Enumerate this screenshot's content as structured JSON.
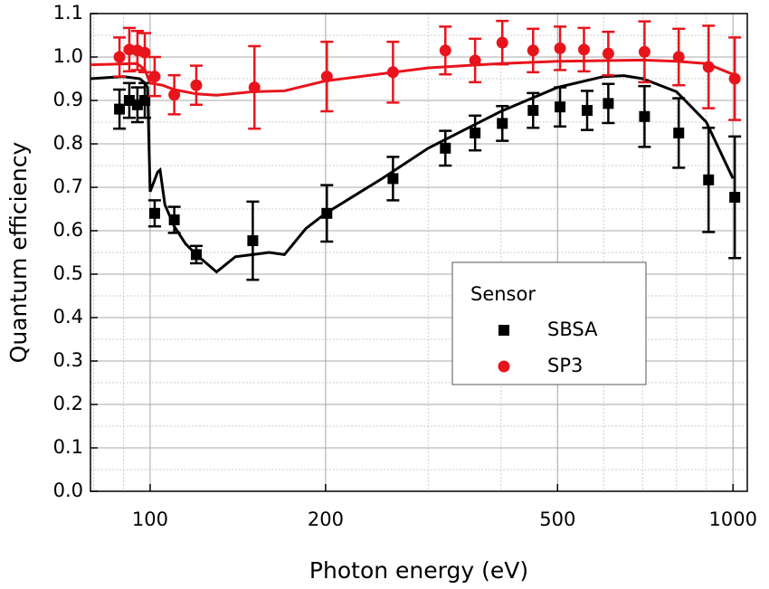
{
  "chart_data": {
    "type": "scatter",
    "x_label": "Photon energy (eV)",
    "y_label": "Quantum efficiency",
    "legend_title": "Sensor",
    "legend": "lower right",
    "log_x": true,
    "grid": true,
    "xlim": [
      79,
      1058
    ],
    "ylim": [
      0,
      1.1
    ],
    "xticks": [
      100,
      200,
      500,
      1000
    ],
    "yticks": [
      {
        "value": 0,
        "label": "0.0"
      },
      0.1,
      0.2,
      0.3,
      0.4,
      0.5,
      0.6,
      0.7,
      0.8,
      0.9,
      {
        "value": 1,
        "label": "1.0"
      },
      1.1
    ],
    "series": [
      {
        "name": "SBSA",
        "color": "#000000",
        "marker": "square",
        "x": [
          88.6,
          92.1,
          95.1,
          97.9,
          101.8,
          110,
          120,
          150,
          201,
          261,
          321,
          361,
          402,
          454,
          505,
          562,
          611,
          705,
          807,
          908,
          1007
        ],
        "values": [
          0.88,
          0.9,
          0.89,
          0.9,
          0.64,
          0.625,
          0.545,
          0.577,
          0.64,
          0.72,
          0.79,
          0.825,
          0.847,
          0.877,
          0.885,
          0.877,
          0.893,
          0.863,
          0.825,
          0.717,
          0.677
        ],
        "errors": [
          0.045,
          0.04,
          0.04,
          0.04,
          0.03,
          0.03,
          0.02,
          0.09,
          0.065,
          0.05,
          0.04,
          0.04,
          0.04,
          0.04,
          0.045,
          0.045,
          0.045,
          0.07,
          0.08,
          0.12,
          0.14
        ],
        "curve": {
          "x": [
            79,
            90,
            96,
            98,
            99,
            100,
            103,
            104,
            106,
            110,
            115,
            120,
            130,
            140,
            150,
            160,
            170,
            185,
            200,
            250,
            300,
            400,
            500,
            600,
            650,
            700,
            800,
            900,
            1000
          ],
          "values": [
            0.95,
            0.955,
            0.95,
            0.94,
            0.93,
            0.69,
            0.735,
            0.74,
            0.66,
            0.61,
            0.57,
            0.545,
            0.505,
            0.54,
            0.545,
            0.55,
            0.545,
            0.605,
            0.64,
            0.72,
            0.79,
            0.875,
            0.93,
            0.955,
            0.957,
            0.95,
            0.92,
            0.85,
            0.72
          ]
        }
      },
      {
        "name": "SP3",
        "color": "#e8141c",
        "marker": "circle",
        "x": [
          88.6,
          92.1,
          95.1,
          97.9,
          101.8,
          110,
          120,
          151,
          201,
          261,
          321,
          361,
          402,
          454,
          505,
          555,
          611,
          705,
          807,
          908,
          1007
        ],
        "values": [
          1.0,
          1.017,
          1.015,
          1.01,
          0.955,
          0.913,
          0.935,
          0.93,
          0.955,
          0.965,
          1.015,
          0.992,
          1.033,
          1.015,
          1.02,
          1.017,
          1.008,
          1.012,
          1.0,
          0.977,
          0.95
        ],
        "errors": [
          0.045,
          0.05,
          0.045,
          0.045,
          0.045,
          0.045,
          0.045,
          0.095,
          0.08,
          0.07,
          0.055,
          0.05,
          0.05,
          0.05,
          0.05,
          0.05,
          0.05,
          0.07,
          0.065,
          0.095,
          0.095
        ],
        "curve": {
          "x": [
            79,
            95,
            98,
            100,
            105,
            110,
            120,
            130,
            150,
            170,
            200,
            300,
            400,
            500,
            700,
            800,
            900,
            1000
          ],
          "values": [
            0.982,
            0.985,
            0.97,
            0.94,
            0.935,
            0.925,
            0.915,
            0.912,
            0.92,
            0.922,
            0.945,
            0.975,
            0.985,
            0.99,
            0.993,
            0.99,
            0.985,
            0.96
          ]
        }
      }
    ]
  }
}
